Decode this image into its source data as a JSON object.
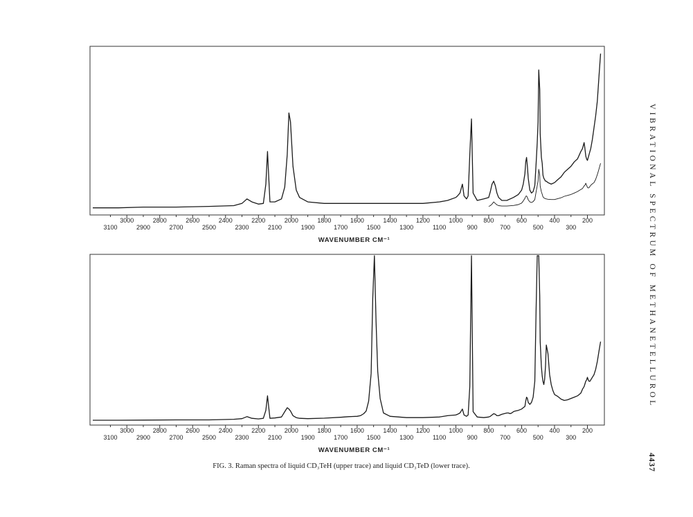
{
  "page": {
    "running_head": "VIBRATIONAL SPECTRUM OF METHANETELLUROL",
    "page_number": "4437",
    "caption": "FIG. 3. Raman spectra of liquid CD₃TeH (upper trace) and liquid CD₃TeD (lower trace)."
  },
  "colors": {
    "trace": "#1a1a1a",
    "frame": "#333333",
    "paper": "#ffffff"
  },
  "chart_data": [
    {
      "type": "line",
      "title": "",
      "xlabel": "WAVENUMBER CM⁻¹",
      "ylabel": "",
      "xlim": [
        3250,
        120
      ],
      "x_scale": "two staggered wavenumber scales (upper row even, lower row odd ticks)",
      "upper_tick_labels": [
        "3000",
        "2800",
        "2600",
        "2400",
        "2200",
        "2000",
        "1800",
        "1600",
        "1400",
        "1200",
        "1000",
        "800",
        "600",
        "400",
        "200"
      ],
      "lower_tick_labels": [
        "3100",
        "2900",
        "2700",
        "2500",
        "2300",
        "2100",
        "1900",
        "1700",
        "1500",
        "1300",
        "1100",
        "900",
        "700",
        "500",
        "300"
      ],
      "grid": false,
      "series": [
        {
          "role": "upper trace",
          "x": [
            3250,
            3050,
            2900,
            2700,
            2500,
            2350,
            2300,
            2270,
            2240,
            2200,
            2170,
            2155,
            2145,
            2130,
            2100,
            2060,
            2040,
            2025,
            2015,
            2005,
            1990,
            1970,
            1950,
            1900,
            1800,
            1600,
            1400,
            1200,
            1100,
            1050,
            1000,
            990,
            975,
            960,
            950,
            935,
            925,
            915,
            905,
            895,
            870,
            830,
            800,
            790,
            780,
            770,
            760,
            750,
            740,
            720,
            690,
            650,
            620,
            600,
            590,
            580,
            575,
            570,
            565,
            560,
            550,
            540,
            530,
            520,
            512,
            505,
            500,
            496,
            490,
            487,
            480,
            475,
            470,
            465,
            460,
            455,
            450,
            440,
            420,
            400,
            380,
            360,
            340,
            320,
            300,
            280,
            260,
            240,
            230,
            220,
            215,
            210,
            205,
            200,
            195,
            190,
            185,
            180,
            170,
            160,
            150,
            140,
            130,
            120
          ],
          "y": [
            2,
            2,
            2.5,
            2.5,
            3,
            3.5,
            5,
            8,
            6,
            4.5,
            5,
            18,
            40,
            6,
            6,
            8,
            16,
            38,
            66,
            60,
            30,
            14,
            9,
            6,
            5,
            5,
            5,
            5,
            6,
            7,
            9,
            10,
            12,
            18,
            10,
            8,
            10,
            38,
            62,
            12,
            7,
            8,
            9,
            13,
            18,
            20,
            17,
            12,
            9,
            7,
            7,
            9,
            11,
            14,
            18,
            25,
            33,
            36,
            30,
            22,
            14,
            12,
            13,
            17,
            32,
            46,
            60,
            95,
            82,
            52,
            36,
            32,
            24,
            22,
            21,
            20,
            20,
            19,
            18,
            19,
            21,
            23,
            26,
            28,
            30,
            33,
            35,
            40,
            42,
            46,
            42,
            37,
            35,
            34,
            36,
            38,
            40,
            42,
            48,
            56,
            64,
            74,
            90,
            106
          ]
        },
        {
          "role": "upper trace (attenuated, lower-gain copy)",
          "x": [
            800,
            790,
            780,
            770,
            760,
            750,
            740,
            720,
            690,
            650,
            620,
            600,
            590,
            580,
            575,
            570,
            565,
            560,
            550,
            540,
            530,
            520,
            512,
            505,
            500,
            496,
            490,
            487,
            480,
            475,
            470,
            465,
            460,
            455,
            450,
            440,
            420,
            400,
            380,
            360,
            340,
            320,
            300,
            280,
            260,
            240,
            230,
            220,
            215,
            210,
            205,
            200,
            195,
            190,
            185,
            180,
            170,
            160,
            150,
            140,
            130,
            120
          ],
          "y": [
            3,
            3.5,
            4.5,
            6,
            5,
            4,
            3.5,
            3.2,
            3.2,
            3.6,
            4.2,
            5.2,
            6.6,
            8.4,
            9.8,
            10,
            9,
            7.4,
            6,
            5.6,
            6.2,
            7.6,
            12.8,
            17,
            20,
            28,
            24,
            16.6,
            12.8,
            11.2,
            9.4,
            8.8,
            8.4,
            8.2,
            8,
            7.8,
            7.6,
            7.6,
            8.2,
            8.8,
            9.8,
            10.4,
            11,
            12,
            13,
            14.4,
            15,
            16.8,
            17.2,
            18.6,
            17.2,
            15.8,
            15.4,
            15.6,
            16.4,
            17.2,
            18.2,
            19,
            21.2,
            24.4,
            28,
            32
          ]
        }
      ],
      "ylim": [
        0,
        110
      ]
    },
    {
      "type": "line",
      "title": "",
      "xlabel": "WAVENUMBER CM⁻¹",
      "ylabel": "",
      "xlim": [
        3250,
        120
      ],
      "upper_tick_labels": [
        "3000",
        "2800",
        "2600",
        "2400",
        "2200",
        "2000",
        "1800",
        "1600",
        "1400",
        "1200",
        "1000",
        "800",
        "600",
        "400",
        "200"
      ],
      "lower_tick_labels": [
        "3100",
        "2900",
        "2700",
        "2500",
        "2300",
        "2100",
        "1900",
        "1700",
        "1500",
        "1300",
        "1100",
        "900",
        "700",
        "500",
        "300"
      ],
      "grid": false,
      "series": [
        {
          "role": "lower trace",
          "x": [
            3250,
            3050,
            2900,
            2700,
            2500,
            2350,
            2300,
            2270,
            2240,
            2200,
            2170,
            2155,
            2145,
            2130,
            2100,
            2060,
            2040,
            2025,
            2015,
            2005,
            1990,
            1970,
            1950,
            1900,
            1800,
            1700,
            1650,
            1600,
            1580,
            1560,
            1545,
            1530,
            1515,
            1505,
            1495,
            1485,
            1475,
            1460,
            1440,
            1400,
            1300,
            1200,
            1100,
            1050,
            1000,
            990,
            975,
            960,
            950,
            935,
            925,
            915,
            905,
            895,
            870,
            830,
            800,
            790,
            780,
            770,
            760,
            750,
            740,
            720,
            690,
            680,
            670,
            660,
            650,
            640,
            620,
            600,
            590,
            580,
            575,
            570,
            565,
            560,
            550,
            540,
            530,
            520,
            512,
            505,
            500,
            496,
            490,
            487,
            480,
            475,
            470,
            465,
            460,
            455,
            450,
            440,
            430,
            420,
            410,
            400,
            380,
            360,
            340,
            320,
            300,
            280,
            260,
            240,
            230,
            220,
            215,
            210,
            205,
            200,
            195,
            190,
            185,
            180,
            170,
            160,
            150,
            140,
            130,
            120
          ],
          "y": [
            1,
            1,
            1.3,
            1.6,
            1.6,
            2.5,
            3.5,
            6.5,
            4,
            3,
            4,
            16,
            38,
            4,
            4.5,
            6,
            14,
            20,
            18,
            15,
            8,
            5,
            4,
            3.5,
            4.2,
            5.5,
            6.5,
            7,
            8,
            11,
            15,
            30,
            72,
            185,
            260,
            150,
            75,
            34,
            12,
            7,
            5,
            5,
            6,
            8,
            9,
            10,
            12,
            18,
            9,
            7,
            9,
            52,
            260,
            14,
            6,
            5,
            6,
            7,
            9,
            11,
            10,
            8,
            8,
            10,
            12,
            12,
            11,
            12,
            14,
            15,
            16,
            18,
            20,
            22,
            30,
            36,
            34,
            28,
            25,
            28,
            36,
            60,
            170,
            260,
            260,
            258,
            190,
            120,
            82,
            68,
            60,
            55,
            63,
            82,
            115,
            102,
            70,
            55,
            46,
            40,
            37,
            33,
            31,
            32,
            34,
            36,
            38,
            42,
            48,
            52,
            56,
            60,
            62,
            66,
            62,
            60,
            60,
            62,
            66,
            70,
            78,
            90,
            105,
            120
          ]
        }
      ],
      "ylim": [
        0,
        250
      ]
    }
  ]
}
